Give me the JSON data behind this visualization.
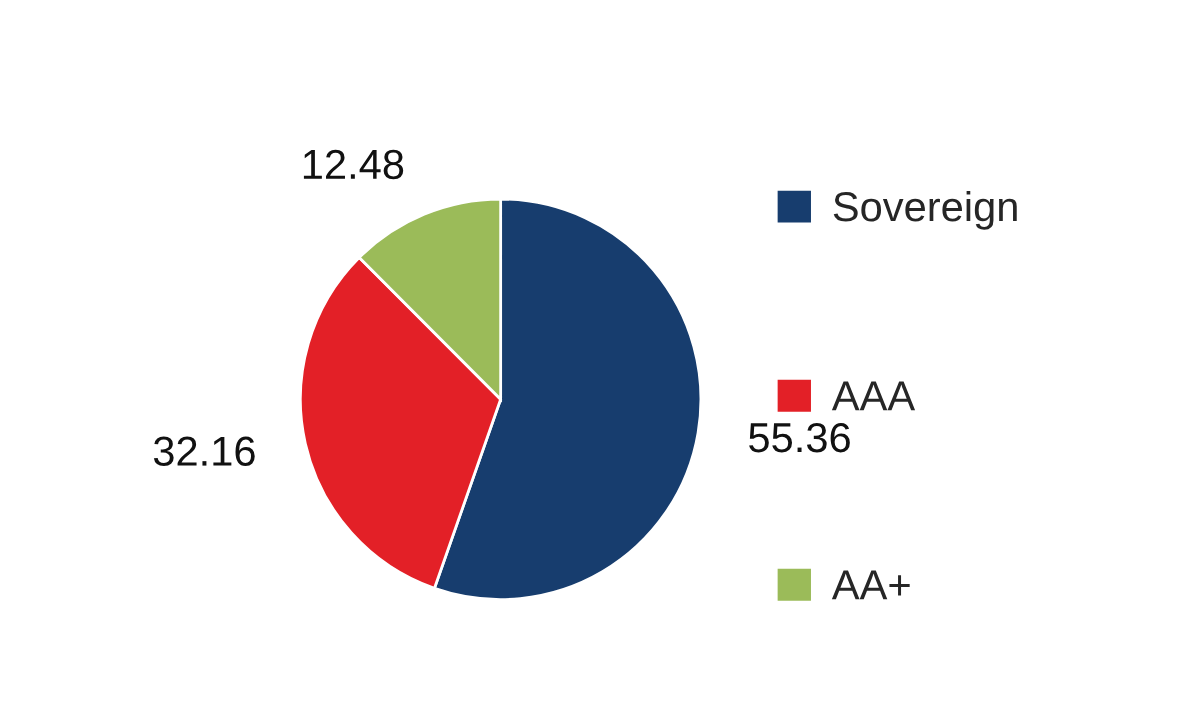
{
  "chart_data": {
    "type": "pie",
    "categories": [
      "Sovereign",
      "AAA",
      "AA+"
    ],
    "values": [
      55.36,
      32.16,
      12.48
    ],
    "colors": [
      "#173d6e",
      "#e32027",
      "#9bbb59"
    ],
    "data_labels": true,
    "legend": "right"
  }
}
